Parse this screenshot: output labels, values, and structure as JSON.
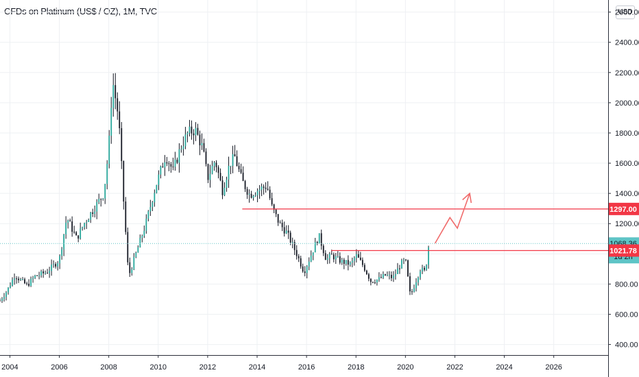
{
  "header": {
    "title": "CFDs on Platinum (US$ / OZ), 1M, TVC",
    "currency": "USD"
  },
  "colors": {
    "up": "#26a69a",
    "down": "#ef5350",
    "candle_body": "#131722",
    "level_line": "#f23645",
    "arrow": "#f06b6b",
    "last_price": "#5ec4c6",
    "grid": "#eef0f3"
  },
  "chart_data": {
    "type": "candlestick",
    "title": "CFDs on Platinum (US$ / OZ), 1M, TVC",
    "xlabel": "",
    "ylabel": "",
    "x_range": [
      2003.6,
      2028.2
    ],
    "y_range": [
      330,
      2680
    ],
    "grid": true,
    "x_ticks": [
      {
        "value": 2004,
        "label": "2004"
      },
      {
        "value": 2006,
        "label": "2006"
      },
      {
        "value": 2008,
        "label": "2008"
      },
      {
        "value": 2010,
        "label": "2010"
      },
      {
        "value": 2012,
        "label": "2012"
      },
      {
        "value": 2014,
        "label": "2014"
      },
      {
        "value": 2016,
        "label": "2016"
      },
      {
        "value": 2018,
        "label": "2018"
      },
      {
        "value": 2020,
        "label": "2020"
      },
      {
        "value": 2022,
        "label": "2022"
      },
      {
        "value": 2024,
        "label": "2024"
      },
      {
        "value": 2026,
        "label": "2026"
      }
    ],
    "y_ticks": [
      {
        "value": 2600,
        "label": "2600.00"
      },
      {
        "value": 2400,
        "label": "2400.00"
      },
      {
        "value": 2200,
        "label": "2200.00"
      },
      {
        "value": 2000,
        "label": "2000.00"
      },
      {
        "value": 1800,
        "label": "1800.00"
      },
      {
        "value": 1600,
        "label": "1600.00"
      },
      {
        "value": 1400,
        "label": "1400.00"
      },
      {
        "value": 1200,
        "label": "1200.00"
      },
      {
        "value": 1000,
        "label": "1000.00"
      },
      {
        "value": 800,
        "label": "800.00"
      },
      {
        "value": 600,
        "label": "600.00"
      },
      {
        "value": 400,
        "label": "400.00"
      }
    ],
    "price_path": [
      [
        2003.6,
        690
      ],
      [
        2003.9,
        760
      ],
      [
        2004.2,
        860
      ],
      [
        2004.4,
        830
      ],
      [
        2004.7,
        790
      ],
      [
        2005.0,
        850
      ],
      [
        2005.5,
        880
      ],
      [
        2006.0,
        960
      ],
      [
        2006.3,
        1240
      ],
      [
        2006.7,
        1100
      ],
      [
        2007.0,
        1200
      ],
      [
        2007.4,
        1300
      ],
      [
        2007.8,
        1400
      ],
      [
        2008.0,
        1700
      ],
      [
        2008.15,
        2150
      ],
      [
        2008.4,
        1900
      ],
      [
        2008.6,
        1350
      ],
      [
        2008.8,
        850
      ],
      [
        2009.0,
        950
      ],
      [
        2009.5,
        1200
      ],
      [
        2009.9,
        1450
      ],
      [
        2010.3,
        1650
      ],
      [
        2010.6,
        1550
      ],
      [
        2010.9,
        1700
      ],
      [
        2011.2,
        1800
      ],
      [
        2011.5,
        1820
      ],
      [
        2011.8,
        1700
      ],
      [
        2012.0,
        1500
      ],
      [
        2012.3,
        1620
      ],
      [
        2012.6,
        1420
      ],
      [
        2012.9,
        1600
      ],
      [
        2013.1,
        1640
      ],
      [
        2013.4,
        1480
      ],
      [
        2013.7,
        1390
      ],
      [
        2014.0,
        1420
      ],
      [
        2014.4,
        1450
      ],
      [
        2014.6,
        1310
      ],
      [
        2014.9,
        1200
      ],
      [
        2015.2,
        1140
      ],
      [
        2015.6,
        1000
      ],
      [
        2015.9,
        880
      ],
      [
        2016.2,
        1000
      ],
      [
        2016.5,
        1120
      ],
      [
        2016.8,
        960
      ],
      [
        2017.0,
        990
      ],
      [
        2017.4,
        950
      ],
      [
        2017.8,
        930
      ],
      [
        2018.0,
        990
      ],
      [
        2018.3,
        920
      ],
      [
        2018.6,
        820
      ],
      [
        2018.9,
        830
      ],
      [
        2019.2,
        860
      ],
      [
        2019.5,
        840
      ],
      [
        2019.8,
        930
      ],
      [
        2020.0,
        960
      ],
      [
        2020.2,
        720
      ],
      [
        2020.4,
        810
      ],
      [
        2020.6,
        900
      ],
      [
        2020.8,
        880
      ],
      [
        2020.95,
        1068
      ]
    ],
    "levels": [
      {
        "value": 1297,
        "from_x": 2013.4,
        "label": "1297.00"
      },
      {
        "value": 1021.78,
        "from_x": 2017.0,
        "label": "1021.78"
      }
    ],
    "last_price": {
      "value": 1068.36,
      "label": "1068.36",
      "countdown": "1d 2h"
    },
    "projection": [
      [
        2021.2,
        1070
      ],
      [
        2021.8,
        1240
      ],
      [
        2022.1,
        1170
      ],
      [
        2022.6,
        1400
      ]
    ]
  }
}
